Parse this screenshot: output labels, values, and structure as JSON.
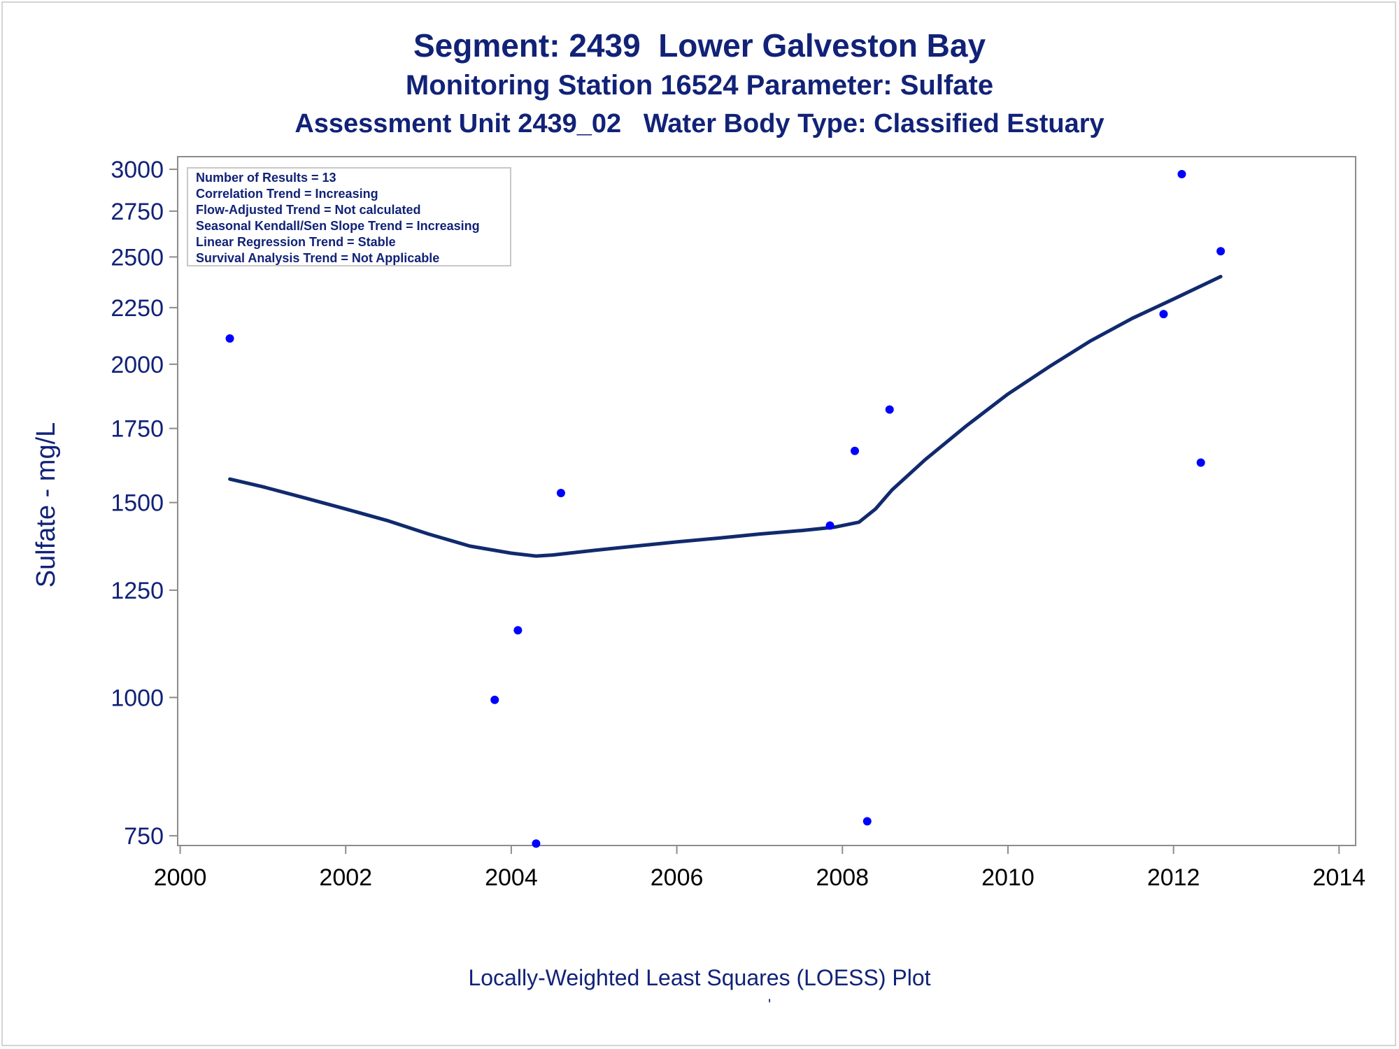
{
  "chart_data": {
    "type": "scatter",
    "title": "Segment: 2439  Lower Galveston Bay",
    "subtitle": "Monitoring Station 16524 Parameter: Sulfate",
    "subtitle2": "Assessment Unit 2439_02   Water Body Type: Classified Estuary",
    "xlabel": "",
    "ylabel": "Sulfate - mg/L",
    "footnote": "Locally-Weighted Least Squares (LOESS) Plot",
    "footnote_mark": "'",
    "y_scale": "log",
    "xlim": [
      2000,
      2014
    ],
    "ylim": [
      735,
      3080
    ],
    "x_ticks": [
      2000,
      2002,
      2004,
      2006,
      2008,
      2010,
      2012,
      2014
    ],
    "y_ticks": [
      750,
      1000,
      1250,
      1500,
      1750,
      2000,
      2250,
      2500,
      2750,
      3000
    ],
    "grid": false,
    "stats_box": {
      "placement": "top-left",
      "lines": [
        "Number of Results = 13",
        "Correlation Trend = Increasing",
        "Flow-Adjusted Trend = Not calculated",
        "Seasonal Kendall/Sen Slope Trend = Increasing",
        "Linear Regression Trend = Stable",
        "Survival Analysis Trend = Not Applicable"
      ]
    },
    "points": {
      "color": "#0000ff",
      "x": [
        2000.6,
        2003.8,
        2004.08,
        2004.3,
        2004.6,
        2007.85,
        2008.15,
        2008.3,
        2008.57,
        2011.88,
        2012.1,
        2012.33,
        2012.57
      ],
      "y": [
        2110,
        995,
        1150,
        738,
        1530,
        1430,
        1670,
        773,
        1820,
        2220,
        2970,
        1630,
        2530
      ]
    },
    "loess": {
      "color": "#112a6e",
      "x": [
        2000.6,
        2001,
        2001.5,
        2002,
        2002.5,
        2003,
        2003.5,
        2004,
        2004.3,
        2004.5,
        2005,
        2005.5,
        2006,
        2006.5,
        2007,
        2007.5,
        2007.9,
        2008.2,
        2008.4,
        2008.6,
        2009,
        2009.5,
        2010,
        2010.5,
        2011,
        2011.5,
        2012,
        2012.57
      ],
      "y": [
        1575,
        1550,
        1515,
        1480,
        1445,
        1405,
        1370,
        1350,
        1342,
        1345,
        1358,
        1370,
        1382,
        1393,
        1405,
        1415,
        1425,
        1440,
        1480,
        1540,
        1640,
        1760,
        1880,
        1990,
        2100,
        2200,
        2290,
        2400
      ]
    }
  }
}
